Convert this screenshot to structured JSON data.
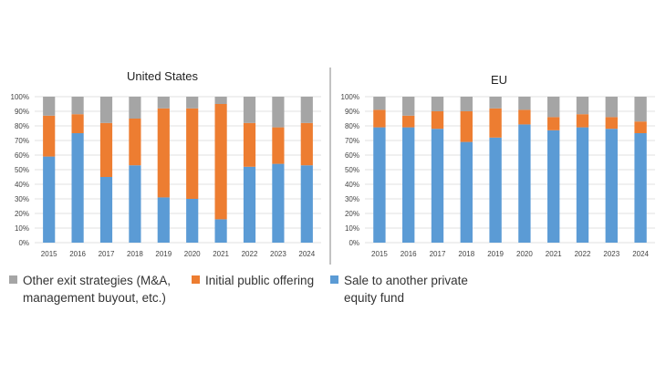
{
  "chart_data": [
    {
      "type": "bar",
      "stacked": true,
      "percent": true,
      "title": "United States",
      "categories": [
        "2015",
        "2016",
        "2017",
        "2018",
        "2019",
        "2020",
        "2021",
        "2022",
        "2023",
        "2024"
      ],
      "y_ticks": [
        "0%",
        "10%",
        "20%",
        "30%",
        "40%",
        "50%",
        "60%",
        "70%",
        "80%",
        "90%",
        "100%"
      ],
      "ylim": [
        0,
        100
      ],
      "series": [
        {
          "name": "Sale to another private equity fund",
          "values": [
            59,
            75,
            45,
            53,
            31,
            30,
            16,
            52,
            54,
            53
          ]
        },
        {
          "name": "Initial public offering",
          "values": [
            28,
            13,
            37,
            32,
            61,
            62,
            79,
            30,
            25,
            29
          ]
        },
        {
          "name": "Other exit strategies (M&A, management buyout, etc.)",
          "values": [
            13,
            12,
            18,
            15,
            8,
            8,
            5,
            18,
            21,
            18
          ]
        }
      ]
    },
    {
      "type": "bar",
      "stacked": true,
      "percent": true,
      "title": "EU",
      "categories": [
        "2015",
        "2016",
        "2017",
        "2018",
        "2019",
        "2020",
        "2021",
        "2022",
        "2023",
        "2024"
      ],
      "y_ticks": [
        "0%",
        "10%",
        "20%",
        "30%",
        "40%",
        "50%",
        "60%",
        "70%",
        "80%",
        "90%",
        "100%"
      ],
      "ylim": [
        0,
        100
      ],
      "series": [
        {
          "name": "Sale to another private equity fund",
          "values": [
            79,
            79,
            78,
            69,
            72,
            81,
            77,
            79,
            78,
            75
          ]
        },
        {
          "name": "Initial public offering",
          "values": [
            12,
            8,
            12,
            21,
            20,
            10,
            9,
            9,
            8,
            8
          ]
        },
        {
          "name": "Other exit strategies (M&A, management buyout, etc.)",
          "values": [
            9,
            13,
            10,
            10,
            8,
            9,
            14,
            12,
            14,
            17
          ]
        }
      ]
    }
  ],
  "colors": {
    "sale": "#5b9bd5",
    "ipo": "#ed7d31",
    "other": "#a5a5a5",
    "grid": "#d9d9d9",
    "divider": "#999999"
  },
  "legend": [
    {
      "label": "Other exit strategies (M&A, management buyout, etc.)",
      "color": "#a5a5a5"
    },
    {
      "label": "Initial public offering",
      "color": "#ed7d31"
    },
    {
      "label": "Sale to another private equity fund",
      "color": "#5b9bd5"
    }
  ]
}
